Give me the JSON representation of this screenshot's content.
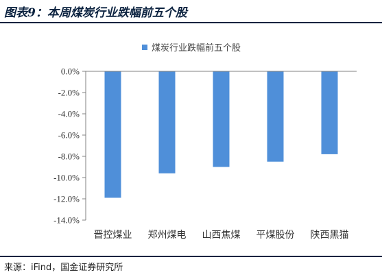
{
  "figure": {
    "title": "图表9：本周煤炭行业跌幅前五个股",
    "source": "来源：iFind，国金证券研究所"
  },
  "chart_data": {
    "type": "bar",
    "categories": [
      "晋控煤业",
      "郑州煤电",
      "山西焦煤",
      "平煤股份",
      "陕西黑猫"
    ],
    "series": [
      {
        "name": "煤炭行业跌幅前五个股",
        "values": [
          -11.9,
          -9.6,
          -9.0,
          -8.5,
          -7.8
        ],
        "color": "#4f8fd9"
      }
    ],
    "y_ticks": [
      "0.0%",
      "-2.0%",
      "-4.0%",
      "-6.0%",
      "-8.0%",
      "-10.0%",
      "-12.0%",
      "-14.0%"
    ],
    "ylim": [
      -14,
      0
    ],
    "legend_position": "top-center",
    "grid": false
  }
}
